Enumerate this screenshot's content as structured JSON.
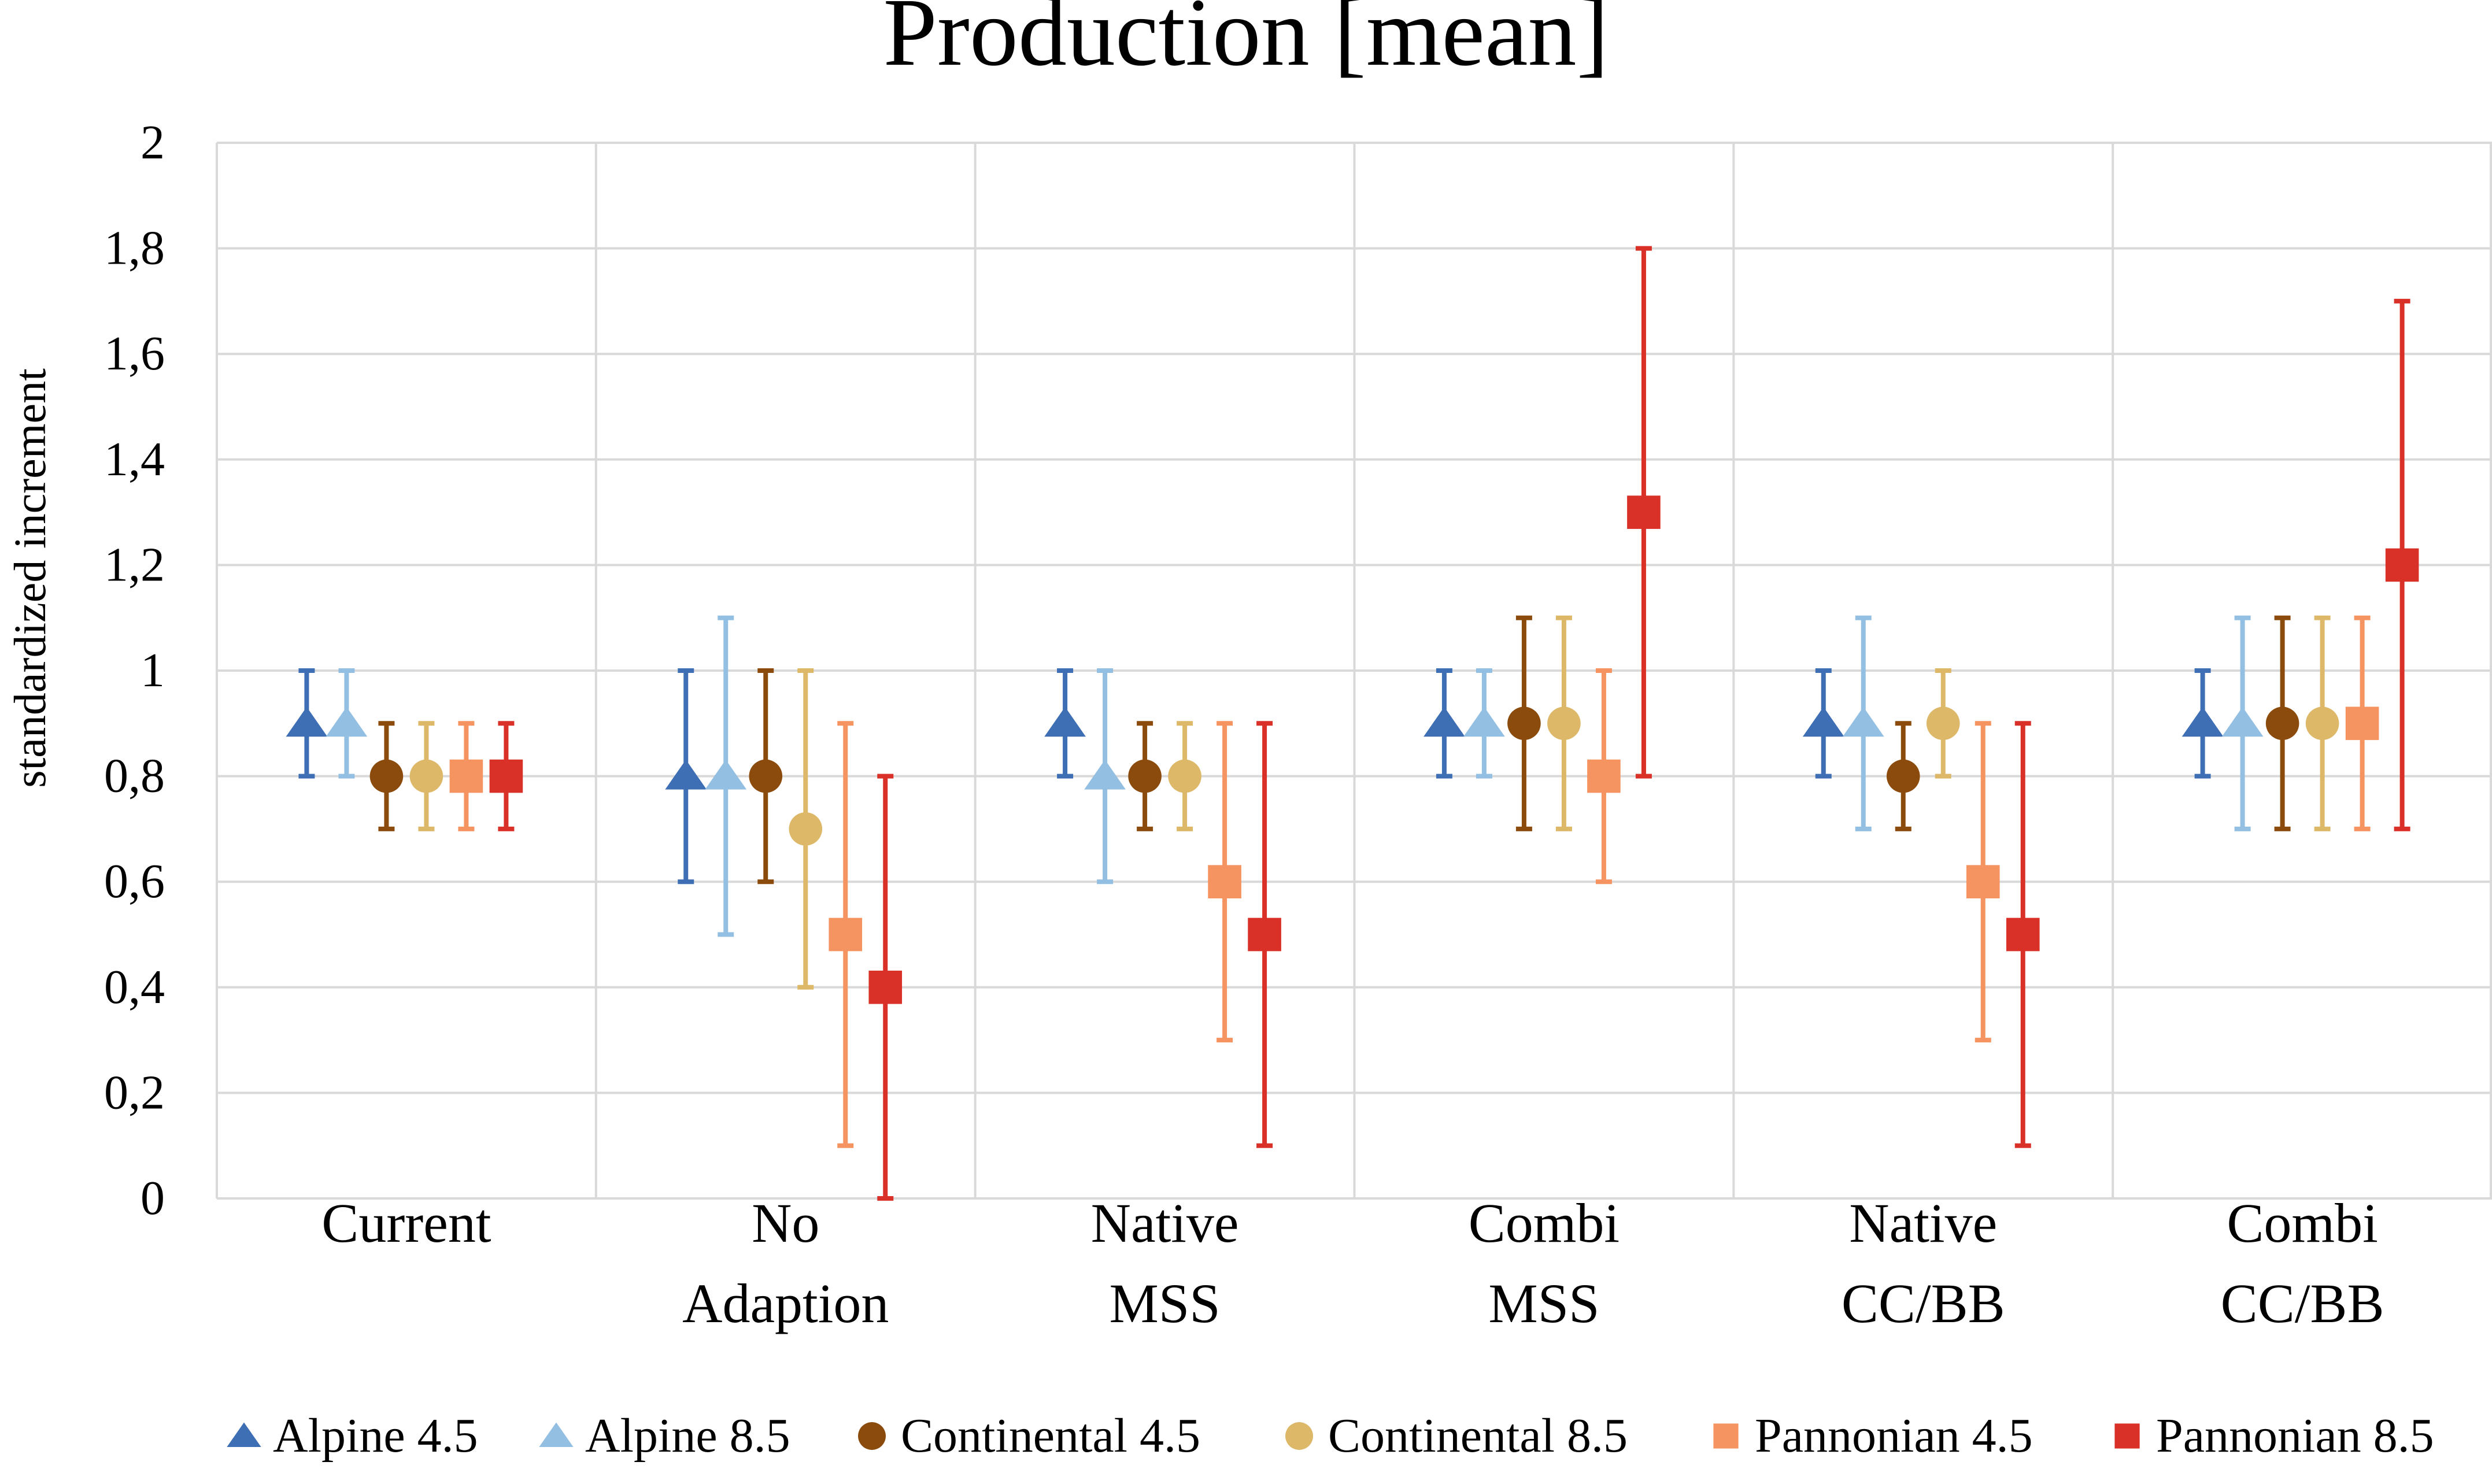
{
  "chart_data": {
    "type": "scatter",
    "title": "Production [mean]",
    "xlabel": "",
    "ylabel": "standardized  increment",
    "ylim": [
      0,
      2
    ],
    "yticks": [
      {
        "value": 0,
        "label": "0"
      },
      {
        "value": 0.2,
        "label": "0,2"
      },
      {
        "value": 0.4,
        "label": "0,4"
      },
      {
        "value": 0.6,
        "label": "0,6"
      },
      {
        "value": 0.8,
        "label": "0,8"
      },
      {
        "value": 1,
        "label": "1"
      },
      {
        "value": 1.2,
        "label": "1,2"
      },
      {
        "value": 1.4,
        "label": "1,4"
      },
      {
        "value": 1.6,
        "label": "1,6"
      },
      {
        "value": 1.8,
        "label": "1,8"
      },
      {
        "value": 2,
        "label": "2"
      }
    ],
    "grid": true,
    "legend_position": "bottom",
    "categories": [
      {
        "id": "current",
        "lines": [
          "Current"
        ]
      },
      {
        "id": "no-adaption",
        "lines": [
          "No",
          "Adaption"
        ]
      },
      {
        "id": "native-mss",
        "lines": [
          "Native",
          "MSS"
        ]
      },
      {
        "id": "combi-mss",
        "lines": [
          "Combi",
          "MSS"
        ]
      },
      {
        "id": "native-ccbb",
        "lines": [
          "Native",
          "CC/BB"
        ]
      },
      {
        "id": "combi-ccbb",
        "lines": [
          "Combi",
          "CC/BB"
        ]
      }
    ],
    "series": [
      {
        "name": "Alpine 4.5",
        "marker": "triangle",
        "color": "#3E6EB4",
        "values": [
          0.9,
          0.8,
          0.9,
          0.9,
          0.9,
          0.9
        ],
        "low": [
          0.8,
          0.6,
          0.8,
          0.8,
          0.8,
          0.8
        ],
        "high": [
          1.0,
          1.0,
          1.0,
          1.0,
          1.0,
          1.0
        ]
      },
      {
        "name": "Alpine 8.5",
        "marker": "triangle",
        "color": "#93BFE2",
        "values": [
          0.9,
          0.8,
          0.8,
          0.9,
          0.9,
          0.9
        ],
        "low": [
          0.8,
          0.5,
          0.6,
          0.8,
          0.7,
          0.7
        ],
        "high": [
          1.0,
          1.1,
          1.0,
          1.0,
          1.1,
          1.1
        ]
      },
      {
        "name": "Continental 4.5",
        "marker": "circle",
        "color": "#8B4B0C",
        "values": [
          0.8,
          0.8,
          0.8,
          0.9,
          0.8,
          0.9
        ],
        "low": [
          0.7,
          0.6,
          0.7,
          0.7,
          0.7,
          0.7
        ],
        "high": [
          0.9,
          1.0,
          0.9,
          1.1,
          0.9,
          1.1
        ]
      },
      {
        "name": "Continental 8.5",
        "marker": "circle",
        "color": "#DDB868",
        "values": [
          0.8,
          0.7,
          0.8,
          0.9,
          0.9,
          0.9
        ],
        "low": [
          0.7,
          0.4,
          0.7,
          0.7,
          0.8,
          0.7
        ],
        "high": [
          0.9,
          1.0,
          0.9,
          1.1,
          1.0,
          1.1
        ]
      },
      {
        "name": "Pannonian 4.5",
        "marker": "square",
        "color": "#F59461",
        "values": [
          0.8,
          0.5,
          0.6,
          0.8,
          0.6,
          0.9
        ],
        "low": [
          0.7,
          0.1,
          0.3,
          0.6,
          0.3,
          0.7
        ],
        "high": [
          0.9,
          0.9,
          0.9,
          1.0,
          0.9,
          1.1
        ]
      },
      {
        "name": "Pannonian 8.5",
        "marker": "square",
        "color": "#D93128",
        "values": [
          0.8,
          0.4,
          0.5,
          1.3,
          0.5,
          1.2
        ],
        "low": [
          0.7,
          0.0,
          0.1,
          0.8,
          0.1,
          0.7
        ],
        "high": [
          0.9,
          0.8,
          0.9,
          1.8,
          0.9,
          1.7
        ]
      }
    ]
  }
}
